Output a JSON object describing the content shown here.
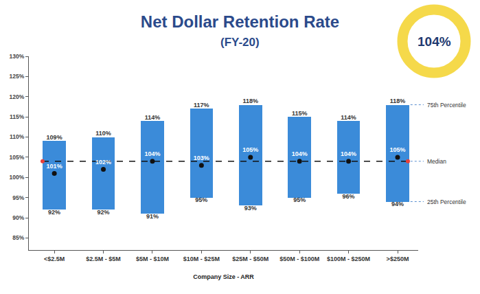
{
  "chart_data": {
    "type": "bar",
    "title": "Net Dollar Retention Rate",
    "subtitle": "(FY-20)",
    "x_label": "Company Size - ARR",
    "categories": [
      "<$2.5M",
      "$2.5M - $5M",
      "$5M - $10M",
      "$10M - $25M",
      "$25M - $50M",
      "$50M - $100M",
      "$100M - $250M",
      ">$250M"
    ],
    "series": [
      {
        "name": "75th Percentile",
        "values": [
          109,
          110,
          114,
          117,
          118,
          115,
          114,
          118
        ],
        "value_labels": [
          "109%",
          "110%",
          "114%",
          "117%",
          "118%",
          "115%",
          "114%",
          "118%"
        ]
      },
      {
        "name": "Median",
        "color": "#111111",
        "values": [
          101,
          102,
          104,
          103,
          105,
          104,
          104,
          105
        ],
        "value_labels": [
          "101%",
          "102%",
          "104%",
          "103%",
          "105%",
          "104%",
          "104%",
          "105%"
        ]
      },
      {
        "name": "25th Percentile",
        "values": [
          92,
          92,
          91,
          95,
          93,
          95,
          96,
          94
        ],
        "value_labels": [
          "92%",
          "92%",
          "91%",
          "95%",
          "93%",
          "95%",
          "96%",
          "94%"
        ]
      }
    ],
    "overall_median": {
      "value": 104,
      "label": "104%"
    },
    "color": "#3b8bd9",
    "ylim": [
      82,
      130
    ],
    "yticks": [
      {
        "value": 85,
        "label": "85%"
      },
      {
        "value": 90,
        "label": "90%"
      },
      {
        "value": 95,
        "label": "95%"
      },
      {
        "value": 100,
        "label": "100%"
      },
      {
        "value": 105,
        "label": "105%"
      },
      {
        "value": 110,
        "label": "110%"
      },
      {
        "value": 115,
        "label": "115%"
      },
      {
        "value": 120,
        "label": "120%"
      },
      {
        "value": 125,
        "label": "125%"
      },
      {
        "value": 130,
        "label": "130%"
      }
    ],
    "grid": false,
    "data_labels": true
  }
}
